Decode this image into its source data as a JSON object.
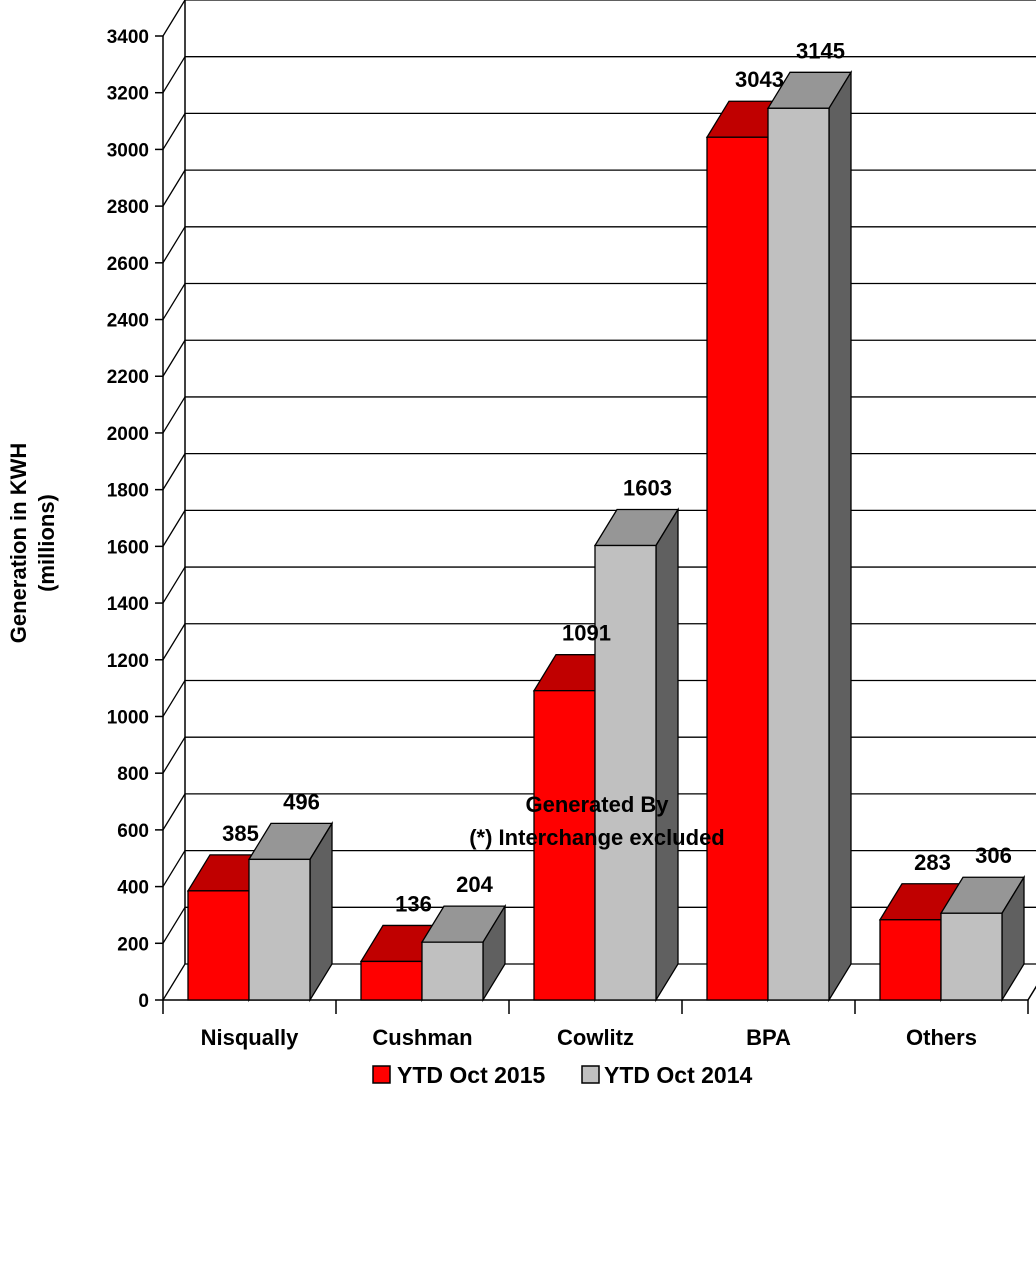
{
  "chart_data": {
    "type": "bar",
    "title": "",
    "categories": [
      "Nisqually",
      "Cushman",
      "Cowlitz",
      "BPA",
      "Others"
    ],
    "series": [
      {
        "name": "YTD Oct 2015",
        "values": [
          385,
          136,
          1091,
          3043,
          283
        ],
        "color": "#ff0000",
        "top_color": "#c00000",
        "side_color": "#800000"
      },
      {
        "name": "YTD Oct 2014",
        "values": [
          496,
          204,
          1603,
          3145,
          306
        ],
        "color": "#c0c0c0",
        "top_color": "#969696",
        "side_color": "#606060"
      }
    ],
    "data_labels": [
      [
        "385",
        "136",
        "1091",
        "3043",
        "283"
      ],
      [
        "496",
        "204",
        "1603",
        "3145",
        "306"
      ]
    ],
    "ylim": [
      0,
      3400
    ],
    "yticks": [
      0,
      200,
      400,
      600,
      800,
      1000,
      1200,
      1400,
      1600,
      1800,
      2000,
      2200,
      2400,
      2600,
      2800,
      3000,
      3200,
      3400
    ],
    "ylabel_line1": "Generation in KWH",
    "ylabel_line2": "(millions)",
    "xlabel": "Generated By",
    "xlabel_note": "(*) Interchange excluded",
    "grid": true,
    "legend_position": "bottom-center"
  }
}
